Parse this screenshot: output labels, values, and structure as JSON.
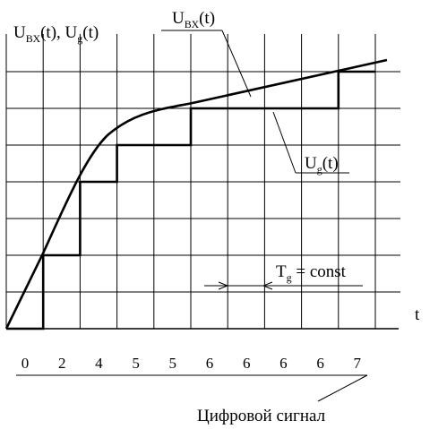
{
  "labels": {
    "y_axis_U": "U",
    "y_axis_sub1": "ВХ",
    "y_axis_mid": "(t),  U",
    "y_axis_sub2": "g",
    "y_axis_end": "(t)",
    "curve_U": "U",
    "curve_sub": "ВХ",
    "curve_end": "(t)",
    "step_U": "U",
    "step_sub": "g",
    "step_end": "(t)",
    "period_T": "T",
    "period_sub": "g",
    "period_end": " = const",
    "t_axis": "t",
    "caption": "Цифровой сигнал"
  },
  "digital_codes": [
    "0",
    "2",
    "4",
    "5",
    "5",
    "6",
    "6",
    "6",
    "6",
    "7"
  ],
  "step_levels": [
    0,
    2,
    4,
    5,
    5,
    6,
    6,
    6,
    6,
    7
  ]
}
